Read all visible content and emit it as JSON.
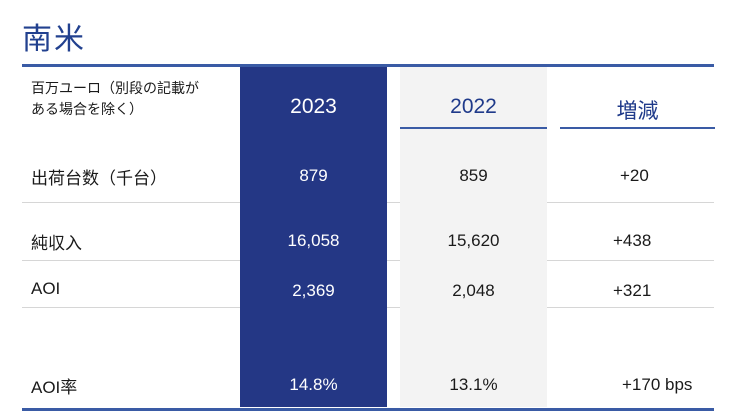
{
  "page": {
    "title": "南米"
  },
  "table": {
    "unit_note_line1": "百万ユーロ（別段の記載が",
    "unit_note_line2": "ある場合を除く）",
    "columns": [
      "2023",
      "2022",
      "増減"
    ],
    "rows": [
      {
        "label": "出荷台数（千台）",
        "v2023": "879",
        "v2022": "859",
        "change": "+20"
      },
      {
        "label": "純収入",
        "v2023": "16,058",
        "v2022": "15,620",
        "change": "+438"
      },
      {
        "label": "AOI",
        "v2023": "2,369",
        "v2022": "2,048",
        "change": "+321"
      },
      {
        "label": "AOI率",
        "v2023": "14.8%",
        "v2022": "13.1%",
        "change": "+170 bps"
      }
    ]
  },
  "colors": {
    "accent_blue": "#243785",
    "title_blue": "#22418f",
    "rule_blue": "#3a5ba5",
    "column_2022_bg": "#f3f3f3"
  }
}
